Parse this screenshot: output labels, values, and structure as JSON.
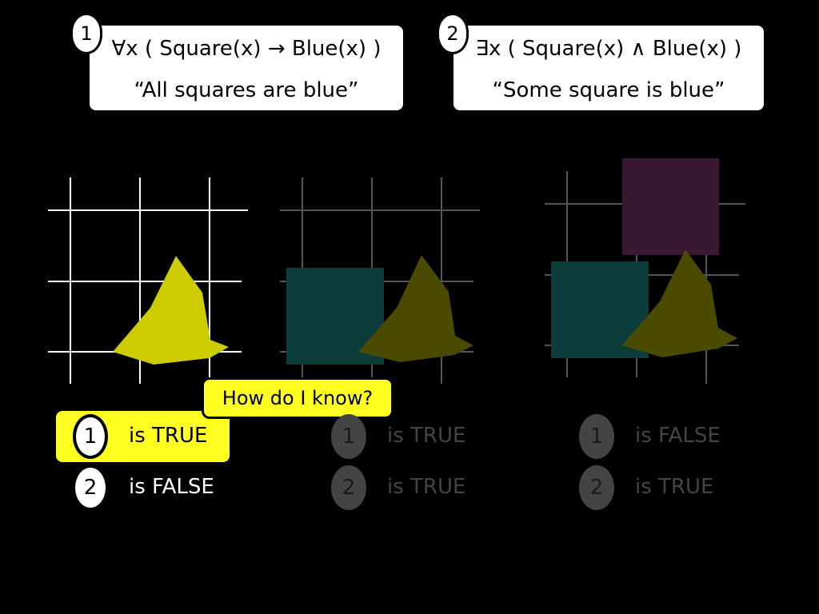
{
  "formulas": [
    {
      "number": "1",
      "logic": "∀x ( Square(x) → Blue(x) )",
      "english": "“All squares are blue”"
    },
    {
      "number": "2",
      "logic": "∃x ( Square(x) ∧ Blue(x) )",
      "english": "“Some square is blue”"
    }
  ],
  "callout": {
    "label": "How do I know?"
  },
  "worlds": [
    {
      "label": "world-1",
      "shapes": [
        "yellow-triangle"
      ],
      "verdicts": [
        {
          "number": "1",
          "text": "is TRUE",
          "state": "highlighted"
        },
        {
          "number": "2",
          "text": "is FALSE",
          "state": "normal"
        }
      ]
    },
    {
      "label": "world-2",
      "shapes": [
        "teal-square",
        "yellow-triangle"
      ],
      "verdicts": [
        {
          "number": "1",
          "text": "is TRUE",
          "state": "dimmed"
        },
        {
          "number": "2",
          "text": "is TRUE",
          "state": "dimmed"
        }
      ]
    },
    {
      "label": "world-3",
      "shapes": [
        "purple-square",
        "teal-square",
        "yellow-triangle"
      ],
      "verdicts": [
        {
          "number": "1",
          "text": "is FALSE",
          "state": "dimmed"
        },
        {
          "number": "2",
          "text": "is TRUE",
          "state": "dimmed"
        }
      ]
    }
  ],
  "colors": {
    "background": "#000000",
    "highlight": "#ffff22",
    "triangle_bright": "#cccc00",
    "triangle_dim": "#4a4a00",
    "square_teal_dim": "#0d3d3a",
    "square_purple_dim": "#3a1834",
    "grid_bright": "#ffffff",
    "grid_dim": "#555555",
    "dim_text": "#444444"
  }
}
